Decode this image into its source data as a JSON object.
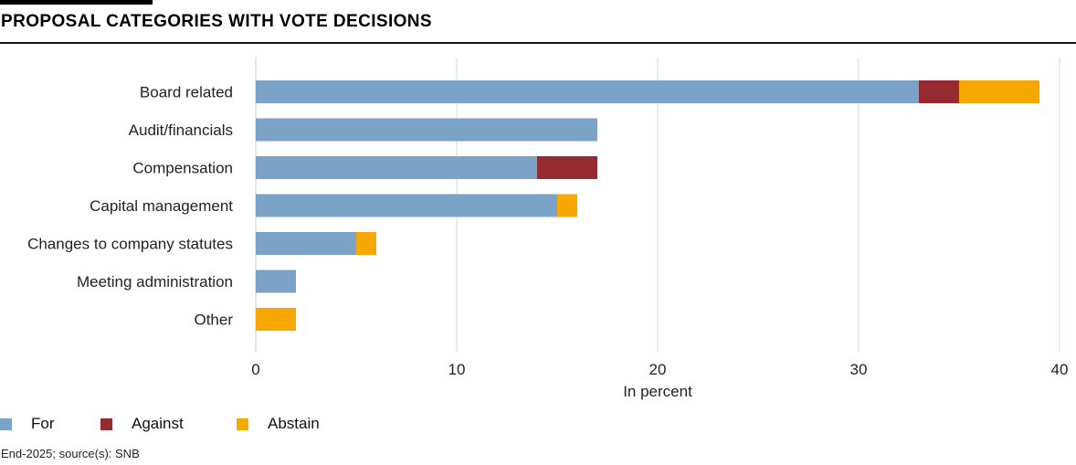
{
  "header": {
    "title": "PROPOSAL CATEGORIES WITH VOTE DECISIONS"
  },
  "footer": {
    "note": "End-2025; source(s): SNB"
  },
  "chart_data": {
    "type": "bar",
    "orientation": "horizontal",
    "stacked": true,
    "title": "PROPOSAL CATEGORIES WITH VOTE DECISIONS",
    "xlabel": "In percent",
    "ylabel": "",
    "xlim": [
      0,
      40
    ],
    "xticks": [
      0,
      10,
      20,
      30,
      40
    ],
    "grid": true,
    "legend_position": "bottom-left",
    "categories": [
      "Board related",
      "Audit/financials",
      "Compensation",
      "Capital management",
      "Changes to company statutes",
      "Meeting administration",
      "Other"
    ],
    "series": [
      {
        "name": "For",
        "color": "#7BA3C8",
        "values": [
          33,
          17,
          14,
          15,
          5,
          2,
          0
        ]
      },
      {
        "name": "Against",
        "color": "#952A30",
        "values": [
          2,
          0,
          3,
          0,
          0,
          0,
          0
        ]
      },
      {
        "name": "Abstain",
        "color": "#F6A800",
        "values": [
          4,
          0,
          0,
          1,
          1,
          0,
          2
        ]
      }
    ]
  }
}
